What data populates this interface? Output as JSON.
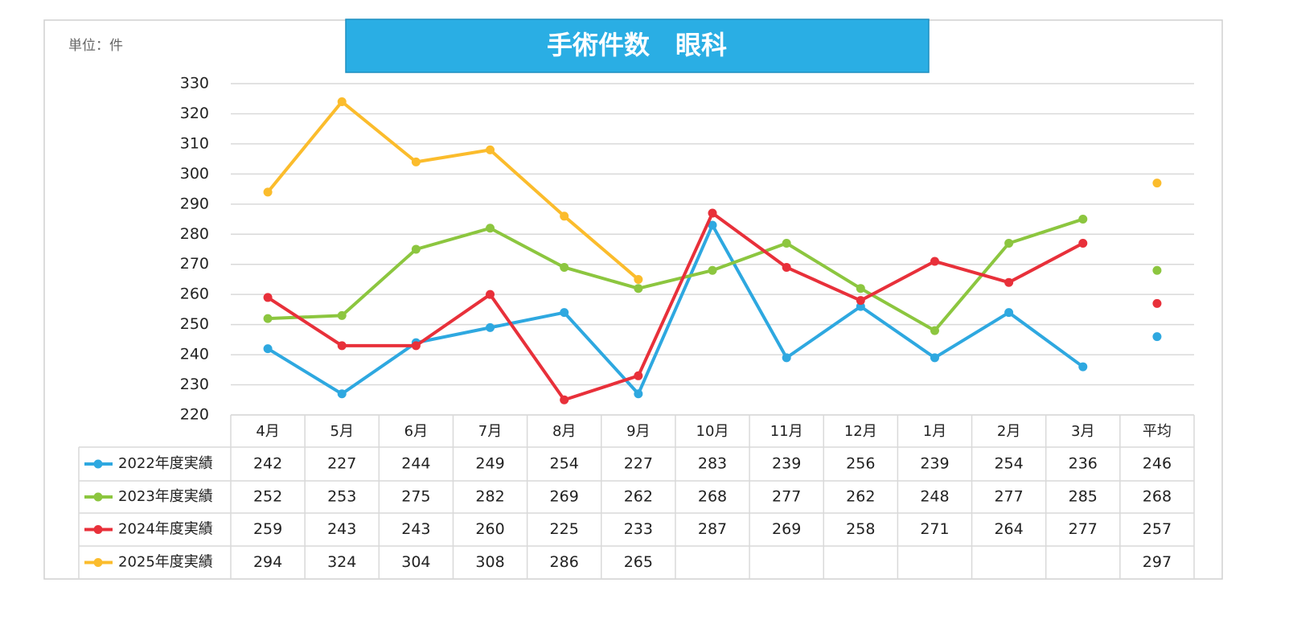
{
  "chart_data": {
    "type": "line",
    "title": "手術件数　眼科",
    "unit_label": "単位：件",
    "categories": [
      "4月",
      "5月",
      "6月",
      "7月",
      "8月",
      "9月",
      "10月",
      "11月",
      "12月",
      "1月",
      "2月",
      "3月",
      "平均"
    ],
    "series": [
      {
        "name": "2022年度実績",
        "color": "#2ea8e0",
        "values": [
          242,
          227,
          244,
          249,
          254,
          227,
          283,
          239,
          256,
          239,
          254,
          236,
          246
        ]
      },
      {
        "name": "2023年度実績",
        "color": "#8cc63f",
        "values": [
          252,
          253,
          275,
          282,
          269,
          262,
          268,
          277,
          262,
          248,
          277,
          285,
          268
        ]
      },
      {
        "name": "2024年度実績",
        "color": "#e8303a",
        "values": [
          259,
          243,
          243,
          260,
          225,
          233,
          287,
          269,
          258,
          271,
          264,
          277,
          257
        ]
      },
      {
        "name": "2025年度実績",
        "color": "#fbbc2c",
        "values": [
          294,
          324,
          304,
          308,
          286,
          265,
          null,
          null,
          null,
          null,
          null,
          null,
          297
        ]
      }
    ],
    "ylim": [
      220,
      330
    ],
    "yticks": [
      220,
      230,
      240,
      250,
      260,
      270,
      280,
      290,
      300,
      310,
      320,
      330
    ],
    "grid": true
  }
}
